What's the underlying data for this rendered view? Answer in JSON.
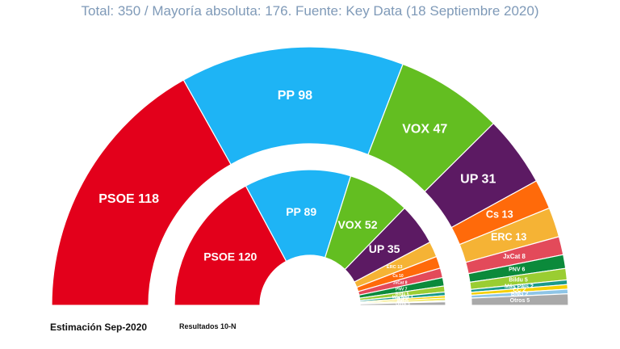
{
  "header": {
    "subtitle": "Total: 350 / Mayoría absoluta: 176. Fuente: Key Data (18 Septiembre 2020)"
  },
  "chart_data": [
    {
      "type": "pie",
      "subtype": "parliament-semicircle",
      "caption": "Estimación Sep-2020",
      "total": 350,
      "slices": [
        {
          "label": "PSOE 118",
          "value": 118,
          "color": "#e3001b"
        },
        {
          "label": "PP 98",
          "value": 98,
          "color": "#1eb4f5"
        },
        {
          "label": "VOX 47",
          "value": 47,
          "color": "#63be21"
        },
        {
          "label": "UP 31",
          "value": 31,
          "color": "#5c1a63"
        },
        {
          "label": "Cs 13",
          "value": 13,
          "color": "#ff6a0a"
        },
        {
          "label": "ERC 13",
          "value": 13,
          "color": "#f5b335"
        },
        {
          "label": "JxCat 8",
          "value": 8,
          "color": "#e34a5a"
        },
        {
          "label": "PNV 6",
          "value": 6,
          "color": "#0b8a3b"
        },
        {
          "label": "Bildu 5",
          "value": 5,
          "color": "#9acd32"
        },
        {
          "label": "Más País 2",
          "value": 2,
          "color": "#1a9a8a"
        },
        {
          "label": "CC 2",
          "value": 2,
          "color": "#f5d000"
        },
        {
          "label": "BNG 2",
          "value": 2,
          "color": "#8ec5e6"
        },
        {
          "label": "Otros 5",
          "value": 5,
          "color": "#a9a9a9"
        }
      ]
    },
    {
      "type": "pie",
      "subtype": "parliament-semicircle",
      "caption": "Resultados 10-N",
      "total": 350,
      "slices": [
        {
          "label": "PSOE 120",
          "value": 120,
          "color": "#e3001b"
        },
        {
          "label": "PP 89",
          "value": 89,
          "color": "#1eb4f5"
        },
        {
          "label": "VOX 52",
          "value": 52,
          "color": "#63be21"
        },
        {
          "label": "UP 35",
          "value": 35,
          "color": "#5c1a63"
        },
        {
          "label": "ERC 13",
          "value": 13,
          "color": "#f5b335"
        },
        {
          "label": "Cs 10",
          "value": 10,
          "color": "#ff6a0a"
        },
        {
          "label": "JxCat 8",
          "value": 8,
          "color": "#e34a5a"
        },
        {
          "label": "PNV 7",
          "value": 7,
          "color": "#0b8a3b"
        },
        {
          "label": "Bildu 5",
          "value": 5,
          "color": "#9acd32"
        },
        {
          "label": "Más País 3",
          "value": 3,
          "color": "#1a9a8a"
        },
        {
          "label": "CUP 2",
          "value": 2,
          "color": "#f5d000"
        },
        {
          "label": "CC 2",
          "value": 2,
          "color": "#f0e442"
        },
        {
          "label": "BNG 1",
          "value": 1,
          "color": "#8ec5e6"
        },
        {
          "label": "Otros 3",
          "value": 3,
          "color": "#a9a9a9"
        }
      ]
    }
  ]
}
